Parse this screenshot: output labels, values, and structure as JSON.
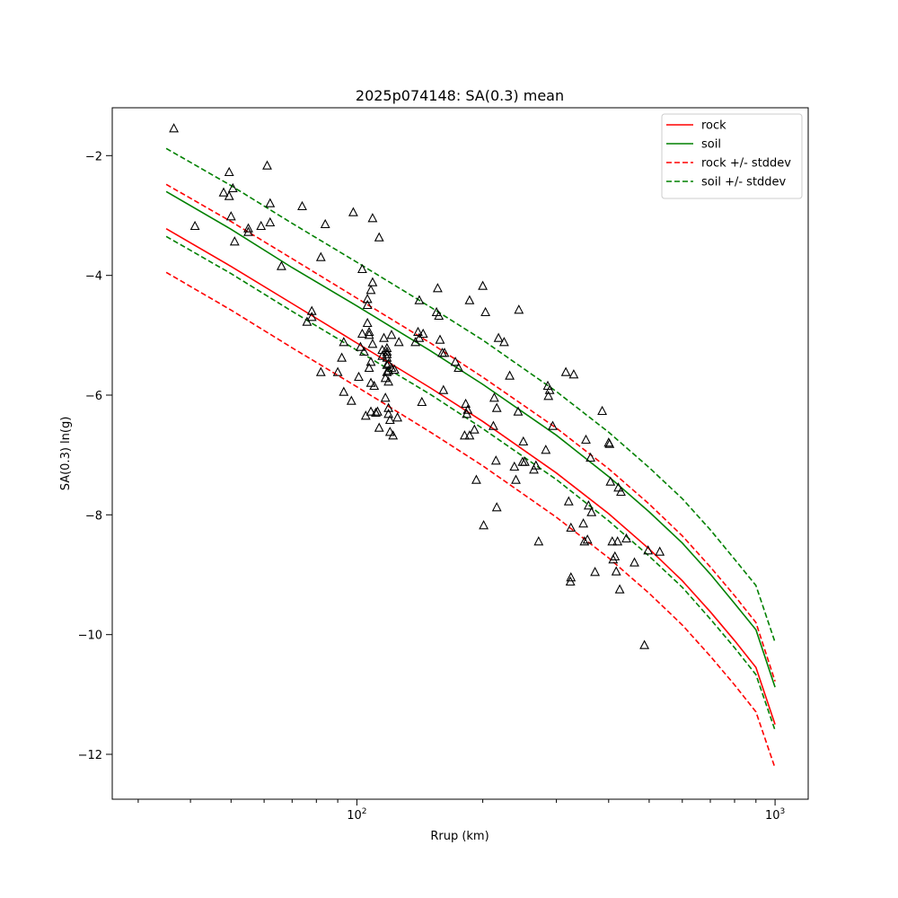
{
  "chart_data": {
    "type": "scatter",
    "title": "2025p074148: SA(0.3) mean",
    "xlabel": "Rrup (km)",
    "ylabel": "SA(0.3) ln(g)",
    "xscale": "log",
    "xlim": [
      26,
      1200
    ],
    "ylim": [
      -12.75,
      -1.2
    ],
    "grid": false,
    "legend_position": "top-right",
    "x_ticks": [
      {
        "value": 100,
        "label": "10",
        "exp": "2"
      },
      {
        "value": 1000,
        "label": "10",
        "exp": "3"
      }
    ],
    "y_ticks": [
      {
        "value": -12,
        "label": "−12"
      },
      {
        "value": -10,
        "label": "−10"
      },
      {
        "value": -8,
        "label": "−8"
      },
      {
        "value": -6,
        "label": "−6"
      },
      {
        "value": -4,
        "label": "−4"
      },
      {
        "value": -2,
        "label": "−2"
      }
    ],
    "series": [
      {
        "name": "rock",
        "color": "#ff0000",
        "dash": "solid",
        "x": [
          35,
          50,
          70,
          100,
          150,
          200,
          300,
          400,
          500,
          600,
          700,
          800,
          900,
          1000
        ],
        "y": [
          -3.22,
          -3.85,
          -4.47,
          -5.13,
          -5.88,
          -6.44,
          -7.3,
          -7.98,
          -8.57,
          -9.1,
          -9.62,
          -10.1,
          -10.55,
          -11.5
        ]
      },
      {
        "name": "soil",
        "color": "#008000",
        "dash": "solid",
        "x": [
          35,
          50,
          70,
          100,
          150,
          200,
          300,
          400,
          500,
          600,
          700,
          800,
          900,
          1000
        ],
        "y": [
          -2.6,
          -3.23,
          -3.87,
          -4.51,
          -5.26,
          -5.82,
          -6.67,
          -7.36,
          -7.95,
          -8.47,
          -8.99,
          -9.48,
          -9.92,
          -10.88
        ]
      },
      {
        "name": "rock +/- stddev",
        "color": "#ff0000",
        "dash": "dashed",
        "x": [
          35,
          50,
          70,
          100,
          150,
          200,
          300,
          400,
          500,
          600,
          700,
          800,
          900,
          1000
        ],
        "y": [
          -2.48,
          -3.1,
          -3.72,
          -4.38,
          -5.13,
          -5.7,
          -6.55,
          -7.23,
          -7.82,
          -8.35,
          -8.87,
          -9.35,
          -9.8,
          -10.78
        ]
      },
      {
        "name": "",
        "color": "#ff0000",
        "dash": "dashed",
        "x": [
          35,
          50,
          70,
          100,
          150,
          200,
          300,
          400,
          500,
          600,
          700,
          800,
          900,
          1000
        ],
        "y": [
          -3.95,
          -4.58,
          -5.21,
          -5.86,
          -6.62,
          -7.18,
          -8.04,
          -8.72,
          -9.31,
          -9.84,
          -10.36,
          -10.84,
          -11.29,
          -12.23
        ]
      },
      {
        "name": "soil +/- stddev",
        "color": "#008000",
        "dash": "dashed",
        "x": [
          35,
          50,
          70,
          100,
          150,
          200,
          300,
          400,
          500,
          600,
          700,
          800,
          900,
          1000
        ],
        "y": [
          -1.88,
          -2.5,
          -3.13,
          -3.78,
          -4.53,
          -5.08,
          -5.94,
          -6.62,
          -7.21,
          -7.73,
          -8.25,
          -8.74,
          -9.18,
          -10.13
        ]
      },
      {
        "name": "",
        "color": "#008000",
        "dash": "dashed",
        "x": [
          35,
          50,
          70,
          100,
          150,
          200,
          300,
          400,
          500,
          600,
          700,
          800,
          900,
          1000
        ],
        "y": [
          -3.35,
          -3.97,
          -4.6,
          -5.25,
          -5.99,
          -6.56,
          -7.41,
          -8.1,
          -8.69,
          -9.21,
          -9.74,
          -10.22,
          -10.67,
          -11.6
        ]
      }
    ],
    "observations": {
      "marker": "triangle",
      "color": "#000000",
      "points": [
        [
          36.5,
          -1.55
        ],
        [
          41,
          -3.18
        ],
        [
          48,
          -2.62
        ],
        [
          49.5,
          -2.28
        ],
        [
          49.5,
          -2.68
        ],
        [
          50,
          -3.02
        ],
        [
          50.5,
          -2.55
        ],
        [
          51,
          -3.44
        ],
        [
          55,
          -3.22
        ],
        [
          55,
          -3.28
        ],
        [
          59,
          -3.18
        ],
        [
          61,
          -2.17
        ],
        [
          62,
          -3.12
        ],
        [
          62,
          -2.8
        ],
        [
          66,
          -3.85
        ],
        [
          74,
          -2.85
        ],
        [
          76,
          -4.78
        ],
        [
          78,
          -4.7
        ],
        [
          78,
          -4.6
        ],
        [
          82,
          -3.7
        ],
        [
          82,
          -5.62
        ],
        [
          84,
          -3.15
        ],
        [
          90,
          -5.62
        ],
        [
          92,
          -5.38
        ],
        [
          93,
          -5.12
        ],
        [
          93,
          -5.95
        ],
        [
          97,
          -6.1
        ],
        [
          98,
          -2.95
        ],
        [
          101,
          -5.7
        ],
        [
          102,
          -5.2
        ],
        [
          103,
          -4.98
        ],
        [
          103,
          -3.9
        ],
        [
          104,
          -5.28
        ],
        [
          105,
          -6.35
        ],
        [
          106,
          -4.4
        ],
        [
          106,
          -4.5
        ],
        [
          106,
          -4.8
        ],
        [
          107,
          -4.95
        ],
        [
          107,
          -5.0
        ],
        [
          107,
          -5.55
        ],
        [
          108,
          -5.45
        ],
        [
          108,
          -6.28
        ],
        [
          108,
          -4.25
        ],
        [
          108,
          -5.8
        ],
        [
          109,
          -4.12
        ],
        [
          109,
          -3.05
        ],
        [
          109,
          -5.15
        ],
        [
          110,
          -5.85
        ],
        [
          111,
          -6.3
        ],
        [
          112,
          -6.28
        ],
        [
          113,
          -3.37
        ],
        [
          113,
          -6.55
        ],
        [
          115,
          -5.25
        ],
        [
          115,
          -5.35
        ],
        [
          116,
          -5.05
        ],
        [
          117,
          -6.05
        ],
        [
          117,
          -5.72
        ],
        [
          118,
          -5.62
        ],
        [
          118,
          -5.22
        ],
        [
          118,
          -5.28
        ],
        [
          118,
          -5.32
        ],
        [
          118,
          -5.38
        ],
        [
          118,
          -5.5
        ],
        [
          119,
          -5.48
        ],
        [
          119,
          -5.6
        ],
        [
          119,
          -6.22
        ],
        [
          119,
          -6.32
        ],
        [
          119,
          -5.78
        ],
        [
          120,
          -6.42
        ],
        [
          120,
          -6.62
        ],
        [
          121,
          -5.55
        ],
        [
          121,
          -5.0
        ],
        [
          122,
          -6.68
        ],
        [
          123,
          -5.58
        ],
        [
          125,
          -6.38
        ],
        [
          126,
          -5.12
        ],
        [
          138,
          -5.12
        ],
        [
          140,
          -4.95
        ],
        [
          141,
          -4.42
        ],
        [
          141,
          -5.05
        ],
        [
          143,
          -6.12
        ],
        [
          144,
          -4.98
        ],
        [
          155,
          -4.62
        ],
        [
          156,
          -4.22
        ],
        [
          157,
          -4.68
        ],
        [
          158,
          -5.08
        ],
        [
          160,
          -5.3
        ],
        [
          161,
          -5.92
        ],
        [
          162,
          -5.3
        ],
        [
          172,
          -5.45
        ],
        [
          175,
          -5.55
        ],
        [
          181,
          -6.68
        ],
        [
          182,
          -6.15
        ],
        [
          183,
          -6.32
        ],
        [
          184,
          -6.25
        ],
        [
          186,
          -4.42
        ],
        [
          186,
          -6.68
        ],
        [
          191,
          -6.58
        ],
        [
          193,
          -7.42
        ],
        [
          200,
          -4.18
        ],
        [
          201,
          -8.18
        ],
        [
          203,
          -4.62
        ],
        [
          212,
          -6.52
        ],
        [
          213,
          -6.05
        ],
        [
          215,
          -7.1
        ],
        [
          216,
          -6.22
        ],
        [
          216,
          -7.88
        ],
        [
          218,
          -5.05
        ],
        [
          225,
          -5.12
        ],
        [
          232,
          -5.68
        ],
        [
          238,
          -7.2
        ],
        [
          240,
          -7.42
        ],
        [
          243,
          -6.28
        ],
        [
          244,
          -4.58
        ],
        [
          249,
          -7.12
        ],
        [
          250,
          -6.78
        ],
        [
          252,
          -7.12
        ],
        [
          265,
          -7.25
        ],
        [
          268,
          -7.18
        ],
        [
          272,
          -8.45
        ],
        [
          283,
          -6.92
        ],
        [
          286,
          -5.85
        ],
        [
          287,
          -6.02
        ],
        [
          289,
          -5.92
        ],
        [
          294,
          -6.52
        ],
        [
          316,
          -5.62
        ],
        [
          321,
          -7.78
        ],
        [
          324,
          -9.12
        ],
        [
          325,
          -8.22
        ],
        [
          325,
          -9.05
        ],
        [
          330,
          -5.66
        ],
        [
          348,
          -8.15
        ],
        [
          350,
          -8.45
        ],
        [
          353,
          -6.75
        ],
        [
          356,
          -8.42
        ],
        [
          358,
          -7.85
        ],
        [
          362,
          -7.05
        ],
        [
          364,
          -7.96
        ],
        [
          371,
          -8.96
        ],
        [
          386,
          -6.27
        ],
        [
          400,
          -6.8
        ],
        [
          402,
          -6.82
        ],
        [
          404,
          -7.45
        ],
        [
          408,
          -8.45
        ],
        [
          410,
          -8.75
        ],
        [
          414,
          -8.7
        ],
        [
          417,
          -8.95
        ],
        [
          420,
          -8.45
        ],
        [
          422,
          -7.55
        ],
        [
          425,
          -9.25
        ],
        [
          428,
          -7.62
        ],
        [
          441,
          -8.4
        ],
        [
          461,
          -8.8
        ],
        [
          487,
          -10.18
        ],
        [
          497,
          -8.6
        ],
        [
          530,
          -8.62
        ]
      ]
    }
  }
}
